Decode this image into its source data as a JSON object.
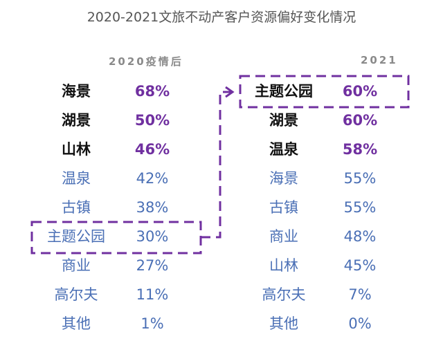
{
  "chart_data": {
    "type": "table",
    "title": "2020-2021文旅不动产客户资源偏好变化情况",
    "columns": [
      {
        "header": "2020疫情后",
        "rows": [
          {
            "name": "海景",
            "value": "68%",
            "highlight": true
          },
          {
            "name": "湖景",
            "value": "50%",
            "highlight": true
          },
          {
            "name": "山林",
            "value": "46%",
            "highlight": true
          },
          {
            "name": "温泉",
            "value": "42%",
            "highlight": false
          },
          {
            "name": "古镇",
            "value": "38%",
            "highlight": false
          },
          {
            "name": "主题公园",
            "value": "30%",
            "highlight": false
          },
          {
            "name": "商业",
            "value": "27%",
            "highlight": false
          },
          {
            "name": "高尔夫",
            "value": "11%",
            "highlight": false
          },
          {
            "name": "其他",
            "value": "1%",
            "highlight": false
          }
        ]
      },
      {
        "header": "2021",
        "rows": [
          {
            "name": "主题公园",
            "value": "60%",
            "highlight": true
          },
          {
            "name": "湖景",
            "value": "60%",
            "highlight": true
          },
          {
            "name": "温泉",
            "value": "58%",
            "highlight": true
          },
          {
            "name": "海景",
            "value": "55%",
            "highlight": false
          },
          {
            "name": "古镇",
            "value": "55%",
            "highlight": false
          },
          {
            "name": "商业",
            "value": "48%",
            "highlight": false
          },
          {
            "name": "山林",
            "value": "45%",
            "highlight": false
          },
          {
            "name": "高尔夫",
            "value": "7%",
            "highlight": false
          },
          {
            "name": "其他",
            "value": "0%",
            "highlight": false
          }
        ]
      }
    ],
    "emphasis": {
      "from": "主题公园",
      "from_value": "30%",
      "to": "主题公园",
      "to_value": "60%"
    },
    "colors": {
      "highlight_value": "#7030a0",
      "normal_text": "#4a6fb5",
      "connector": "#7030a0"
    }
  }
}
